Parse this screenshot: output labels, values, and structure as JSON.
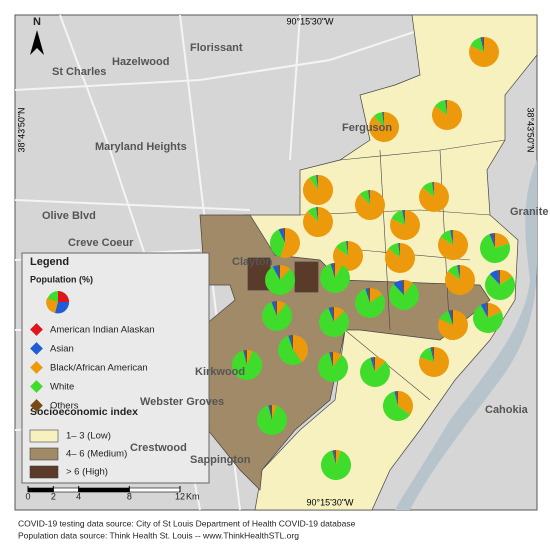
{
  "compass": "N",
  "coordinates": {
    "top": "90°15'30\"W",
    "bottom": "90°15'30\"W",
    "left": "38°43'50\"N",
    "right": "38°43'50\"N"
  },
  "places": [
    "Hazelwood",
    "Florissant",
    "St Charles",
    "Ferguson",
    "Maryland Heights",
    "Creve Coeur",
    "Granite City",
    "Kirkwood",
    "Cahokia",
    "Clayton",
    "Olive Blvd",
    "Sappington",
    "Webster Groves",
    "Crestwood"
  ],
  "legend": {
    "title": "Legend",
    "population_title": "Population (%)",
    "population_groups": [
      {
        "name": "American Indian Alaskan",
        "color": "#e0141e"
      },
      {
        "name": "Asian",
        "color": "#1f5cd6"
      },
      {
        "name": "Black/African American",
        "color": "#ec9a0c"
      },
      {
        "name": "White",
        "color": "#3fdc2c"
      },
      {
        "name": "Others",
        "color": "#7a4a14"
      }
    ],
    "socio_title": "Socioeconomic index",
    "socio_classes": [
      {
        "name": "1– 3 (Low)",
        "color": "#f7f1c0"
      },
      {
        "name": "4– 6 (Medium)",
        "color": "#a08a68"
      },
      {
        "name": "> 6 (High)",
        "color": "#5a3a28"
      }
    ]
  },
  "pies": [
    {
      "values": [
        0,
        2,
        82,
        14,
        2
      ]
    },
    {
      "values": [
        0,
        1,
        88,
        10,
        1
      ]
    },
    {
      "values": [
        0,
        1,
        85,
        13,
        1
      ]
    },
    {
      "values": [
        0,
        1,
        86,
        12,
        1
      ]
    },
    {
      "values": [
        0,
        1,
        88,
        10,
        1
      ]
    },
    {
      "values": [
        0,
        1,
        90,
        8,
        1
      ]
    },
    {
      "values": [
        0,
        1,
        88,
        10,
        1
      ]
    },
    {
      "values": [
        0,
        2,
        82,
        15,
        1
      ]
    },
    {
      "values": [
        0,
        5,
        55,
        38,
        2
      ]
    },
    {
      "values": [
        0,
        1,
        85,
        13,
        1
      ]
    },
    {
      "values": [
        0,
        1,
        86,
        12,
        1
      ]
    },
    {
      "values": [
        0,
        2,
        84,
        13,
        1
      ]
    },
    {
      "values": [
        0,
        4,
        20,
        74,
        2
      ]
    },
    {
      "values": [
        0,
        2,
        85,
        12,
        1
      ]
    },
    {
      "values": [
        0,
        10,
        15,
        73,
        2
      ]
    },
    {
      "values": [
        0,
        6,
        12,
        80,
        2
      ]
    },
    {
      "values": [
        0,
        3,
        8,
        87,
        2
      ]
    },
    {
      "values": [
        0,
        3,
        15,
        80,
        2
      ]
    },
    {
      "values": [
        0,
        10,
        10,
        78,
        2
      ]
    },
    {
      "values": [
        0,
        4,
        10,
        84,
        2
      ]
    },
    {
      "values": [
        0,
        4,
        12,
        82,
        2
      ]
    },
    {
      "values": [
        0,
        3,
        82,
        13,
        2
      ]
    },
    {
      "values": [
        0,
        6,
        18,
        74,
        2
      ]
    },
    {
      "values": [
        0,
        3,
        40,
        55,
        2
      ]
    },
    {
      "values": [
        0,
        2,
        6,
        90,
        2
      ]
    },
    {
      "values": [
        0,
        2,
        10,
        86,
        2
      ]
    },
    {
      "values": [
        0,
        3,
        12,
        83,
        2
      ]
    },
    {
      "values": [
        0,
        2,
        80,
        16,
        2
      ]
    },
    {
      "values": [
        0,
        2,
        35,
        61,
        2
      ]
    },
    {
      "values": [
        0,
        2,
        5,
        91,
        2
      ]
    },
    {
      "values": [
        0,
        2,
        5,
        91,
        2
      ]
    }
  ],
  "scale": {
    "ticks": [
      0,
      2,
      4,
      8,
      12
    ],
    "unit": "Km"
  },
  "sources": [
    "COVID-19 testing data source:  City of St Louis Department of Health COVID-19 database",
    "Population data source: Think Health St. Louis -- www.ThinkHealthSTL.org"
  ]
}
